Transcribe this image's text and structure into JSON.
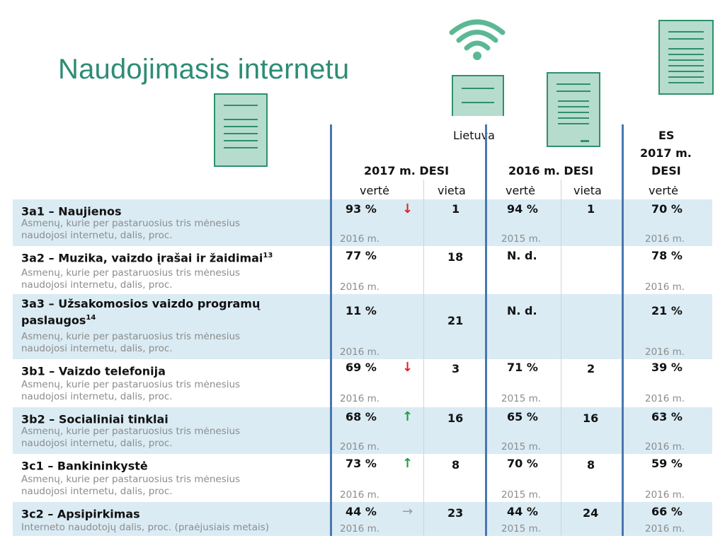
{
  "page": {
    "title": "Naudojimasis internetu"
  },
  "header": {
    "country": "Lietuva",
    "desi2017": "2017 m. DESI",
    "desi2016": "2016 m. DESI",
    "eu_l1": "ES",
    "eu_l2": "2017 m.",
    "eu_l3": "DESI",
    "col_value": "vertė",
    "col_rank": "vieta"
  },
  "rows": [
    {
      "title": "3a1 – Naujienos",
      "sup": "",
      "sub": "Asmenų, kurie per pastaruosius tris mėnesius naudojosi internetu, dalis, proc.",
      "v2017": "93 %",
      "trend": "↓",
      "r2017": "1",
      "v2016": "94 %",
      "r2016": "1",
      "eu": "70 %",
      "y2017": "2016 m.",
      "y2016": "2015 m.",
      "yeu": "2016 m."
    },
    {
      "title": "3a2 – Muzika, vaizdo įrašai ir žaidimai",
      "sup": "13",
      "sub": "Asmenų, kurie per pastaruosius tris mėnesius naudojosi internetu, dalis, proc.",
      "v2017": "77 %",
      "trend": "",
      "r2017": "18",
      "v2016": "N. d.",
      "r2016": "",
      "eu": "78 %",
      "y2017": "2016 m.",
      "y2016": "",
      "yeu": "2016 m."
    },
    {
      "title": "3a3 – Užsakomosios vaizdo programų paslaugos",
      "sup": "14",
      "sub": "Asmenų, kurie per pastaruosius tris mėnesius naudojosi internetu, dalis, proc.",
      "v2017": "11 %",
      "trend": "",
      "r2017": "21",
      "v2016": "N. d.",
      "r2016": "",
      "eu": "21 %",
      "y2017": "2016 m.",
      "y2016": "",
      "yeu": "2016 m."
    },
    {
      "title": "3b1 – Vaizdo telefonija",
      "sup": "",
      "sub": "Asmenų, kurie per pastaruosius tris mėnesius naudojosi internetu, dalis, proc.",
      "v2017": "69 %",
      "trend": "↓",
      "r2017": "3",
      "v2016": "71 %",
      "r2016": "2",
      "eu": "39 %",
      "y2017": "2016 m.",
      "y2016": "2015 m.",
      "yeu": "2016 m."
    },
    {
      "title": "3b2 – Socialiniai tinklai",
      "sup": "",
      "sub": "Asmenų, kurie per pastaruosius tris mėnesius naudojosi internetu, dalis, proc.",
      "v2017": "68 %",
      "trend": "↑",
      "r2017": "16",
      "v2016": "65 %",
      "r2016": "16",
      "eu": "63 %",
      "y2017": "2016 m.",
      "y2016": "2015 m.",
      "yeu": "2016 m."
    },
    {
      "title": "3c1 – Bankininkystė",
      "sup": "",
      "sub": "Asmenų, kurie per pastaruosius tris mėnesius naudojosi internetu, dalis, proc.",
      "v2017": "73 %",
      "trend": "↑",
      "r2017": "8",
      "v2016": "70 %",
      "r2016": "8",
      "eu": "59 %",
      "y2017": "2016 m.",
      "y2016": "2015 m.",
      "yeu": "2016 m."
    },
    {
      "title": "3c2 – Apsipirkimas",
      "sup": "",
      "sub": "Interneto naudotojų dalis, proc. (praėjusiais metais)",
      "v2017": "44 %",
      "trend": "→",
      "r2017": "23",
      "v2016": "44 %",
      "r2016": "24",
      "eu": "66 %",
      "y2017": "2016 m.",
      "y2016": "2015 m.",
      "yeu": "2016 m."
    }
  ],
  "colors": {
    "title": "#2e8c74",
    "band": "#daebf3",
    "divider": "#4a77b0",
    "down": "#e0232b",
    "up": "#1a9f3f",
    "flat": "#9a9a9a"
  },
  "icons": [
    "wifi-icon",
    "document-icon"
  ]
}
